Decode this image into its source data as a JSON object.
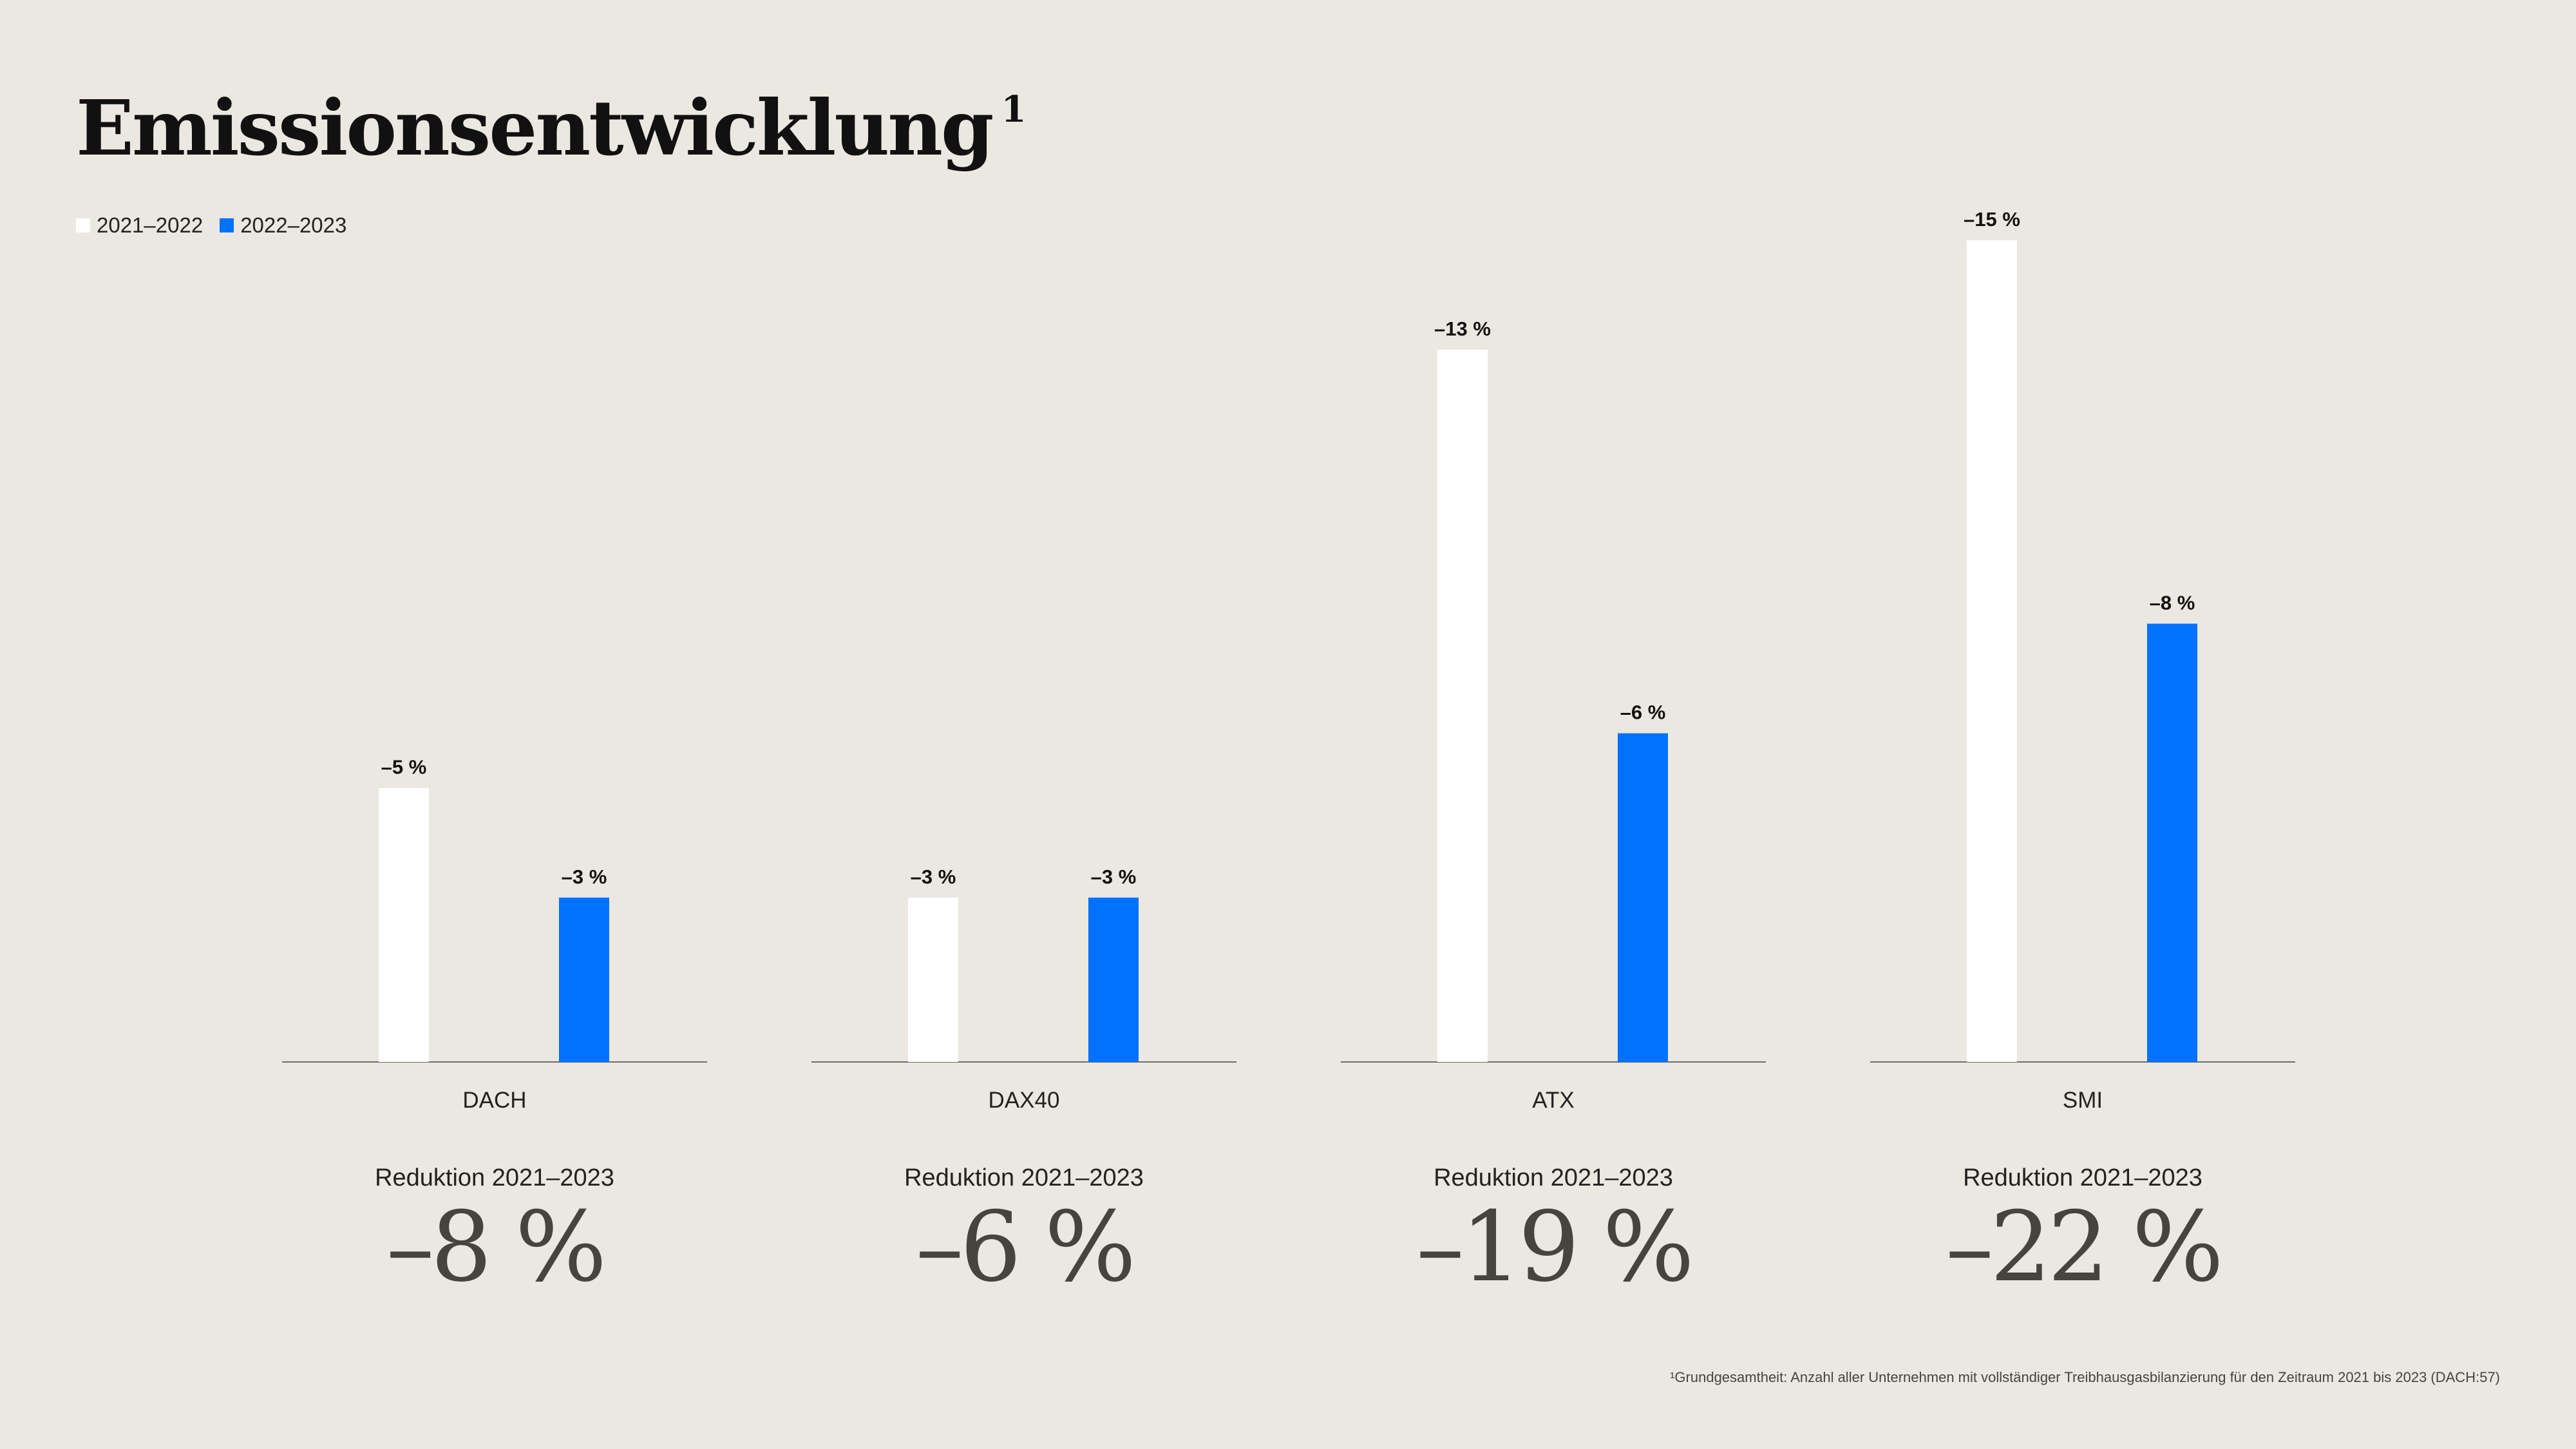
{
  "title": "Emissionsentwicklung",
  "title_footnote_marker": "1",
  "legend": [
    {
      "label": "2021–2022",
      "color": "#ffffff"
    },
    {
      "label": "2022–2023",
      "color": "#0072ff"
    }
  ],
  "chart_data": {
    "type": "bar",
    "categories": [
      "DACH",
      "DAX40",
      "ATX",
      "SMI"
    ],
    "series": [
      {
        "name": "2021–2022",
        "values": [
          -5,
          -3,
          -13,
          -15
        ],
        "labels": [
          "–5 %",
          "–3 %",
          "–13 %",
          "–15 %"
        ],
        "color": "#ffffff"
      },
      {
        "name": "2022–2023",
        "values": [
          -3,
          -3,
          -6,
          -8
        ],
        "labels": [
          "–3 %",
          "–3 %",
          "–6 %",
          "–8 %"
        ],
        "color": "#0072ff"
      }
    ],
    "ylim": [
      0,
      -15
    ],
    "grid": false
  },
  "groups": [
    {
      "category": "DACH",
      "subtitle": "Reduktion 2021–2023",
      "value": "–8 %"
    },
    {
      "category": "DAX40",
      "subtitle": "Reduktion 2021–2023",
      "value": "–6 %"
    },
    {
      "category": "ATX",
      "subtitle": "Reduktion 2021–2023",
      "value": "–19 %"
    },
    {
      "category": "SMI",
      "subtitle": "Reduktion 2021–2023",
      "value": "–22 %"
    }
  ],
  "footnote": "¹Grundgesamtheit: Anzahl aller Unternehmen mit vollständiger Treibhausgasbilanzierung für den Zeitraum 2021 bis 2023 (DACH:57)"
}
